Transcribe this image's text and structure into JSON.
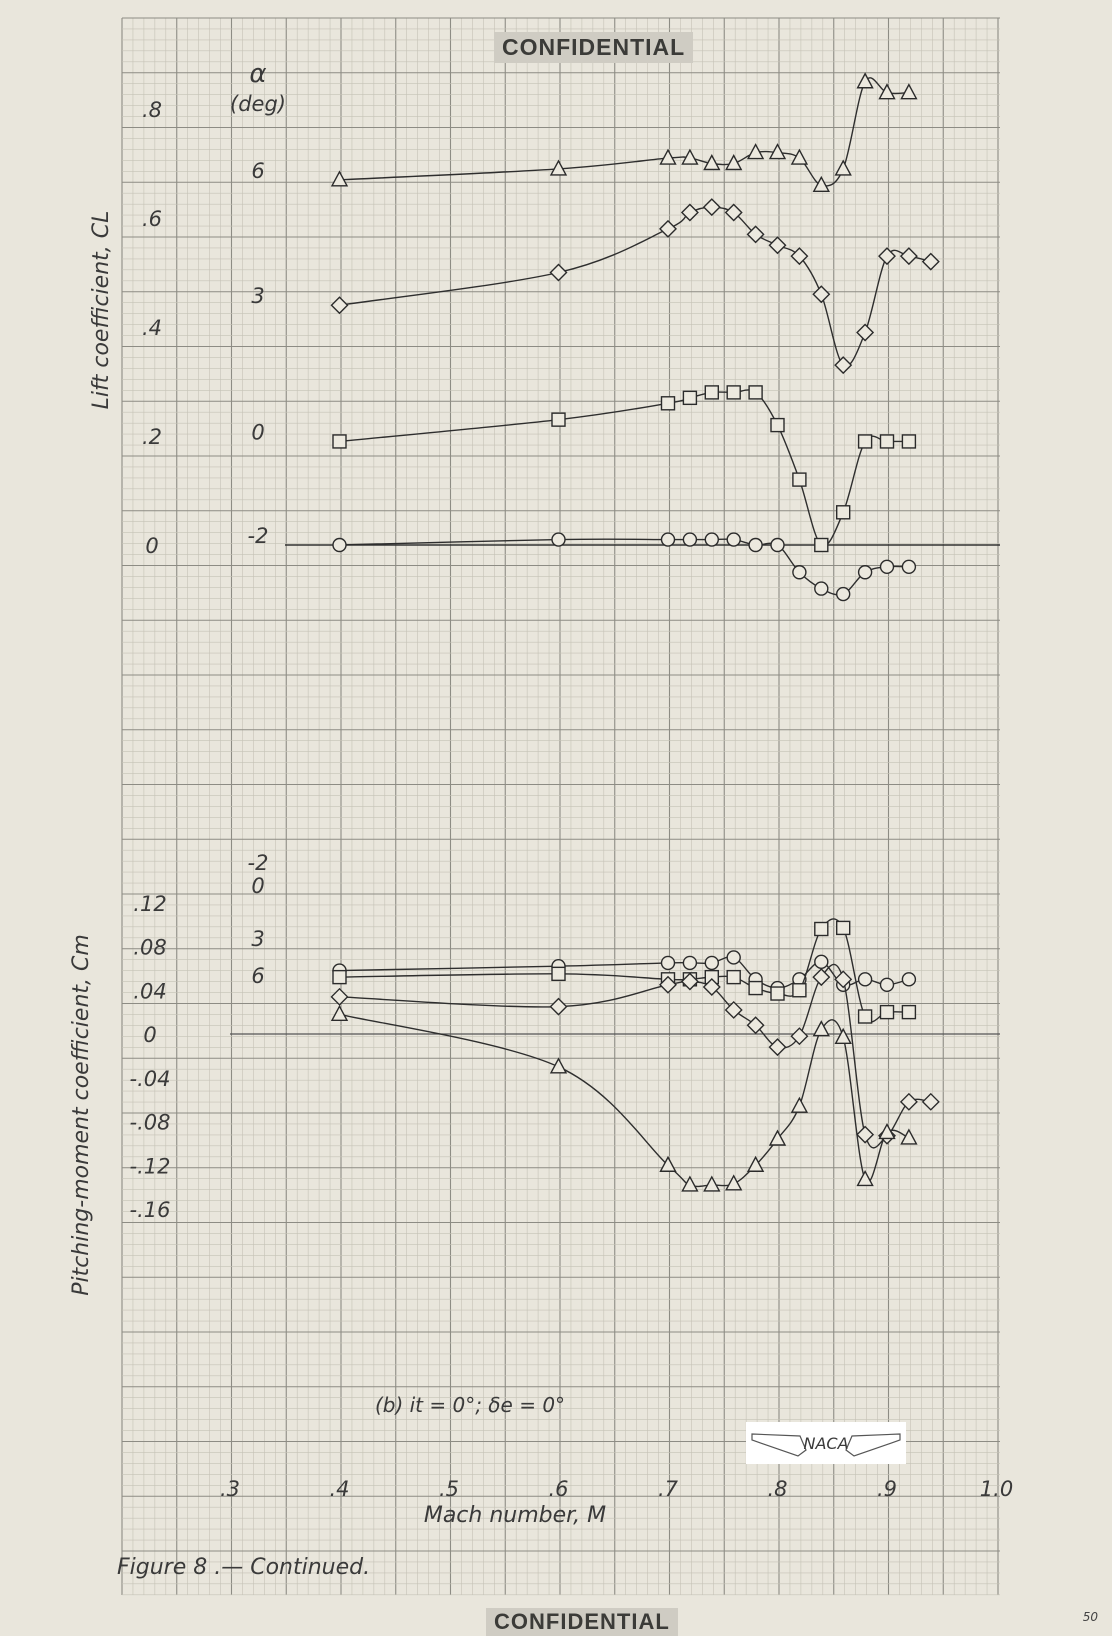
{
  "stamps": {
    "top": "CONFIDENTIAL",
    "bottom": "CONFIDENTIAL"
  },
  "page_number": "50",
  "chart_data": [
    {
      "type": "line",
      "ylabel": "Lift coefficient, CL",
      "legend_title": [
        "α",
        "(deg)"
      ],
      "ytick_labels": [
        "0",
        ".2",
        ".4",
        ".6",
        ".8"
      ],
      "ylim": [
        0,
        0.85
      ],
      "series": [
        {
          "name": "6",
          "marker": "triangle",
          "x": [
            0.4,
            0.6,
            0.7,
            0.72,
            0.74,
            0.76,
            0.78,
            0.8,
            0.82,
            0.84,
            0.86,
            0.88,
            0.9,
            0.92
          ],
          "y": [
            0.67,
            0.69,
            0.71,
            0.71,
            0.7,
            0.7,
            0.72,
            0.72,
            0.71,
            0.66,
            0.69,
            0.85,
            0.83,
            0.83
          ]
        },
        {
          "name": "3",
          "marker": "diamond",
          "x": [
            0.4,
            0.6,
            0.7,
            0.72,
            0.74,
            0.76,
            0.78,
            0.8,
            0.82,
            0.84,
            0.86,
            0.88,
            0.9,
            0.92,
            0.94
          ],
          "y": [
            0.44,
            0.5,
            0.58,
            0.61,
            0.62,
            0.61,
            0.57,
            0.55,
            0.53,
            0.46,
            0.33,
            0.39,
            0.53,
            0.53,
            0.52
          ]
        },
        {
          "name": "0",
          "marker": "square",
          "x": [
            0.4,
            0.6,
            0.7,
            0.72,
            0.74,
            0.76,
            0.78,
            0.8,
            0.82,
            0.84,
            0.86,
            0.88,
            0.9,
            0.92
          ],
          "y": [
            0.19,
            0.23,
            0.26,
            0.27,
            0.28,
            0.28,
            0.28,
            0.22,
            0.12,
            0.0,
            0.06,
            0.19,
            0.19,
            0.19
          ]
        },
        {
          "name": "-2",
          "marker": "circle",
          "x": [
            0.4,
            0.6,
            0.7,
            0.72,
            0.74,
            0.76,
            0.78,
            0.8,
            0.82,
            0.84,
            0.86,
            0.88,
            0.9,
            0.92
          ],
          "y": [
            0.0,
            0.01,
            0.01,
            0.01,
            0.01,
            0.01,
            0.0,
            0.0,
            -0.05,
            -0.08,
            -0.09,
            -0.05,
            -0.04,
            -0.04
          ]
        }
      ]
    },
    {
      "type": "line",
      "ylabel": "Pitching-moment coefficient, Cm",
      "xlabel": "Mach number, M",
      "xtick_labels": [
        ".3",
        ".4",
        ".5",
        ".6",
        ".7",
        ".8",
        ".9",
        "1.0"
      ],
      "ytick_labels": [
        "-.16",
        "-.12",
        "-.08",
        "-.04",
        "0",
        ".04",
        ".08",
        ".12"
      ],
      "xlim": [
        0.3,
        1.0
      ],
      "ylim": [
        -0.16,
        0.12
      ],
      "annotation": "(b) it = 0°; δe = 0°",
      "series": [
        {
          "name": "-2",
          "marker": "circle",
          "x": [
            0.4,
            0.6,
            0.7,
            0.72,
            0.74,
            0.76,
            0.78,
            0.8,
            0.82,
            0.84,
            0.86,
            0.88,
            0.9,
            0.92
          ],
          "y": [
            0.058,
            0.062,
            0.065,
            0.065,
            0.065,
            0.07,
            0.05,
            0.042,
            0.05,
            0.066,
            0.045,
            0.05,
            0.045,
            0.05
          ]
        },
        {
          "name": "0",
          "marker": "square",
          "x": [
            0.4,
            0.6,
            0.7,
            0.72,
            0.74,
            0.76,
            0.78,
            0.8,
            0.82,
            0.84,
            0.86,
            0.88,
            0.9,
            0.92
          ],
          "y": [
            0.052,
            0.055,
            0.05,
            0.05,
            0.052,
            0.052,
            0.042,
            0.037,
            0.04,
            0.096,
            0.097,
            0.016,
            0.02,
            0.02
          ]
        },
        {
          "name": "3",
          "marker": "diamond",
          "x": [
            0.4,
            0.6,
            0.7,
            0.72,
            0.74,
            0.76,
            0.78,
            0.8,
            0.82,
            0.84,
            0.86,
            0.88,
            0.9,
            0.92,
            0.94
          ],
          "y": [
            0.034,
            0.025,
            0.045,
            0.048,
            0.043,
            0.022,
            0.008,
            -0.012,
            -0.002,
            0.052,
            0.05,
            -0.092,
            -0.093,
            -0.062,
            -0.062
          ]
        },
        {
          "name": "6",
          "marker": "triangle",
          "x": [
            0.4,
            0.6,
            0.7,
            0.72,
            0.74,
            0.76,
            0.78,
            0.8,
            0.82,
            0.84,
            0.86,
            0.88,
            0.9,
            0.92
          ],
          "y": [
            0.018,
            -0.03,
            -0.12,
            -0.138,
            -0.138,
            -0.137,
            -0.12,
            -0.096,
            -0.066,
            0.004,
            -0.003,
            -0.133,
            -0.09,
            -0.095
          ]
        }
      ]
    }
  ],
  "figure_caption": "Figure 8 .— Continued.",
  "logo_text": "NACA"
}
